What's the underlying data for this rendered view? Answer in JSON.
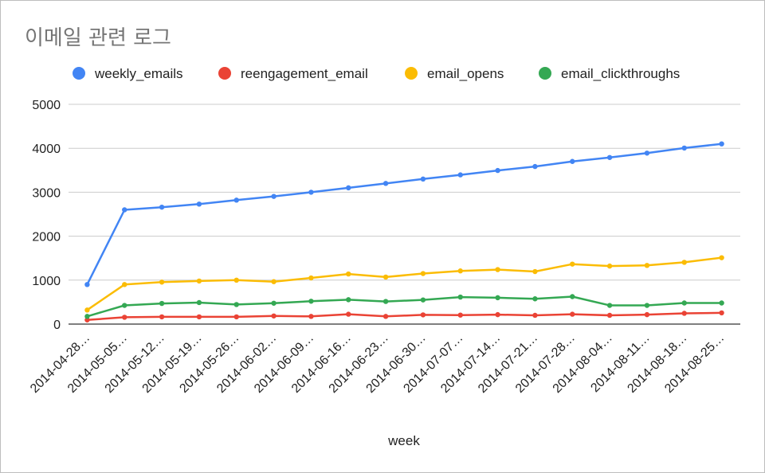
{
  "title": "이메일 관련 로그",
  "chart_data": {
    "type": "line",
    "title": "이메일 관련 로그",
    "xlabel": "week",
    "ylabel": "",
    "ylim": [
      0,
      5000
    ],
    "yticks": [
      0,
      1000,
      2000,
      3000,
      4000,
      5000
    ],
    "grid": true,
    "legend_position": "top",
    "categories": [
      "2014-04-28…",
      "2014-05-05…",
      "2014-05-12…",
      "2014-05-19…",
      "2014-05-26…",
      "2014-06-02…",
      "2014-06-09…",
      "2014-06-16…",
      "2014-06-23…",
      "2014-06-30…",
      "2014-07-07…",
      "2014-07-14…",
      "2014-07-21…",
      "2014-07-28…",
      "2014-08-04…",
      "2014-08-11…",
      "2014-08-18…",
      "2014-08-25…"
    ],
    "series": [
      {
        "name": "weekly_emails",
        "color": "#4285f4",
        "values": [
          900,
          2600,
          2660,
          2730,
          2820,
          2905,
          3000,
          3100,
          3200,
          3300,
          3395,
          3495,
          3585,
          3700,
          3790,
          3890,
          4005,
          4100
        ]
      },
      {
        "name": "reengagement_email",
        "color": "#ea4335",
        "values": [
          95,
          155,
          165,
          165,
          165,
          185,
          175,
          225,
          175,
          210,
          205,
          215,
          200,
          225,
          200,
          215,
          245,
          255
        ]
      },
      {
        "name": "email_opens",
        "color": "#fbbc04",
        "values": [
          320,
          900,
          955,
          980,
          1000,
          965,
          1050,
          1140,
          1070,
          1150,
          1210,
          1240,
          1195,
          1365,
          1320,
          1335,
          1405,
          1510
        ]
      },
      {
        "name": "email_clickthroughs",
        "color": "#34a853",
        "values": [
          175,
          425,
          470,
          490,
          445,
          475,
          520,
          555,
          515,
          550,
          615,
          600,
          575,
          625,
          425,
          425,
          480,
          480
        ]
      }
    ]
  }
}
